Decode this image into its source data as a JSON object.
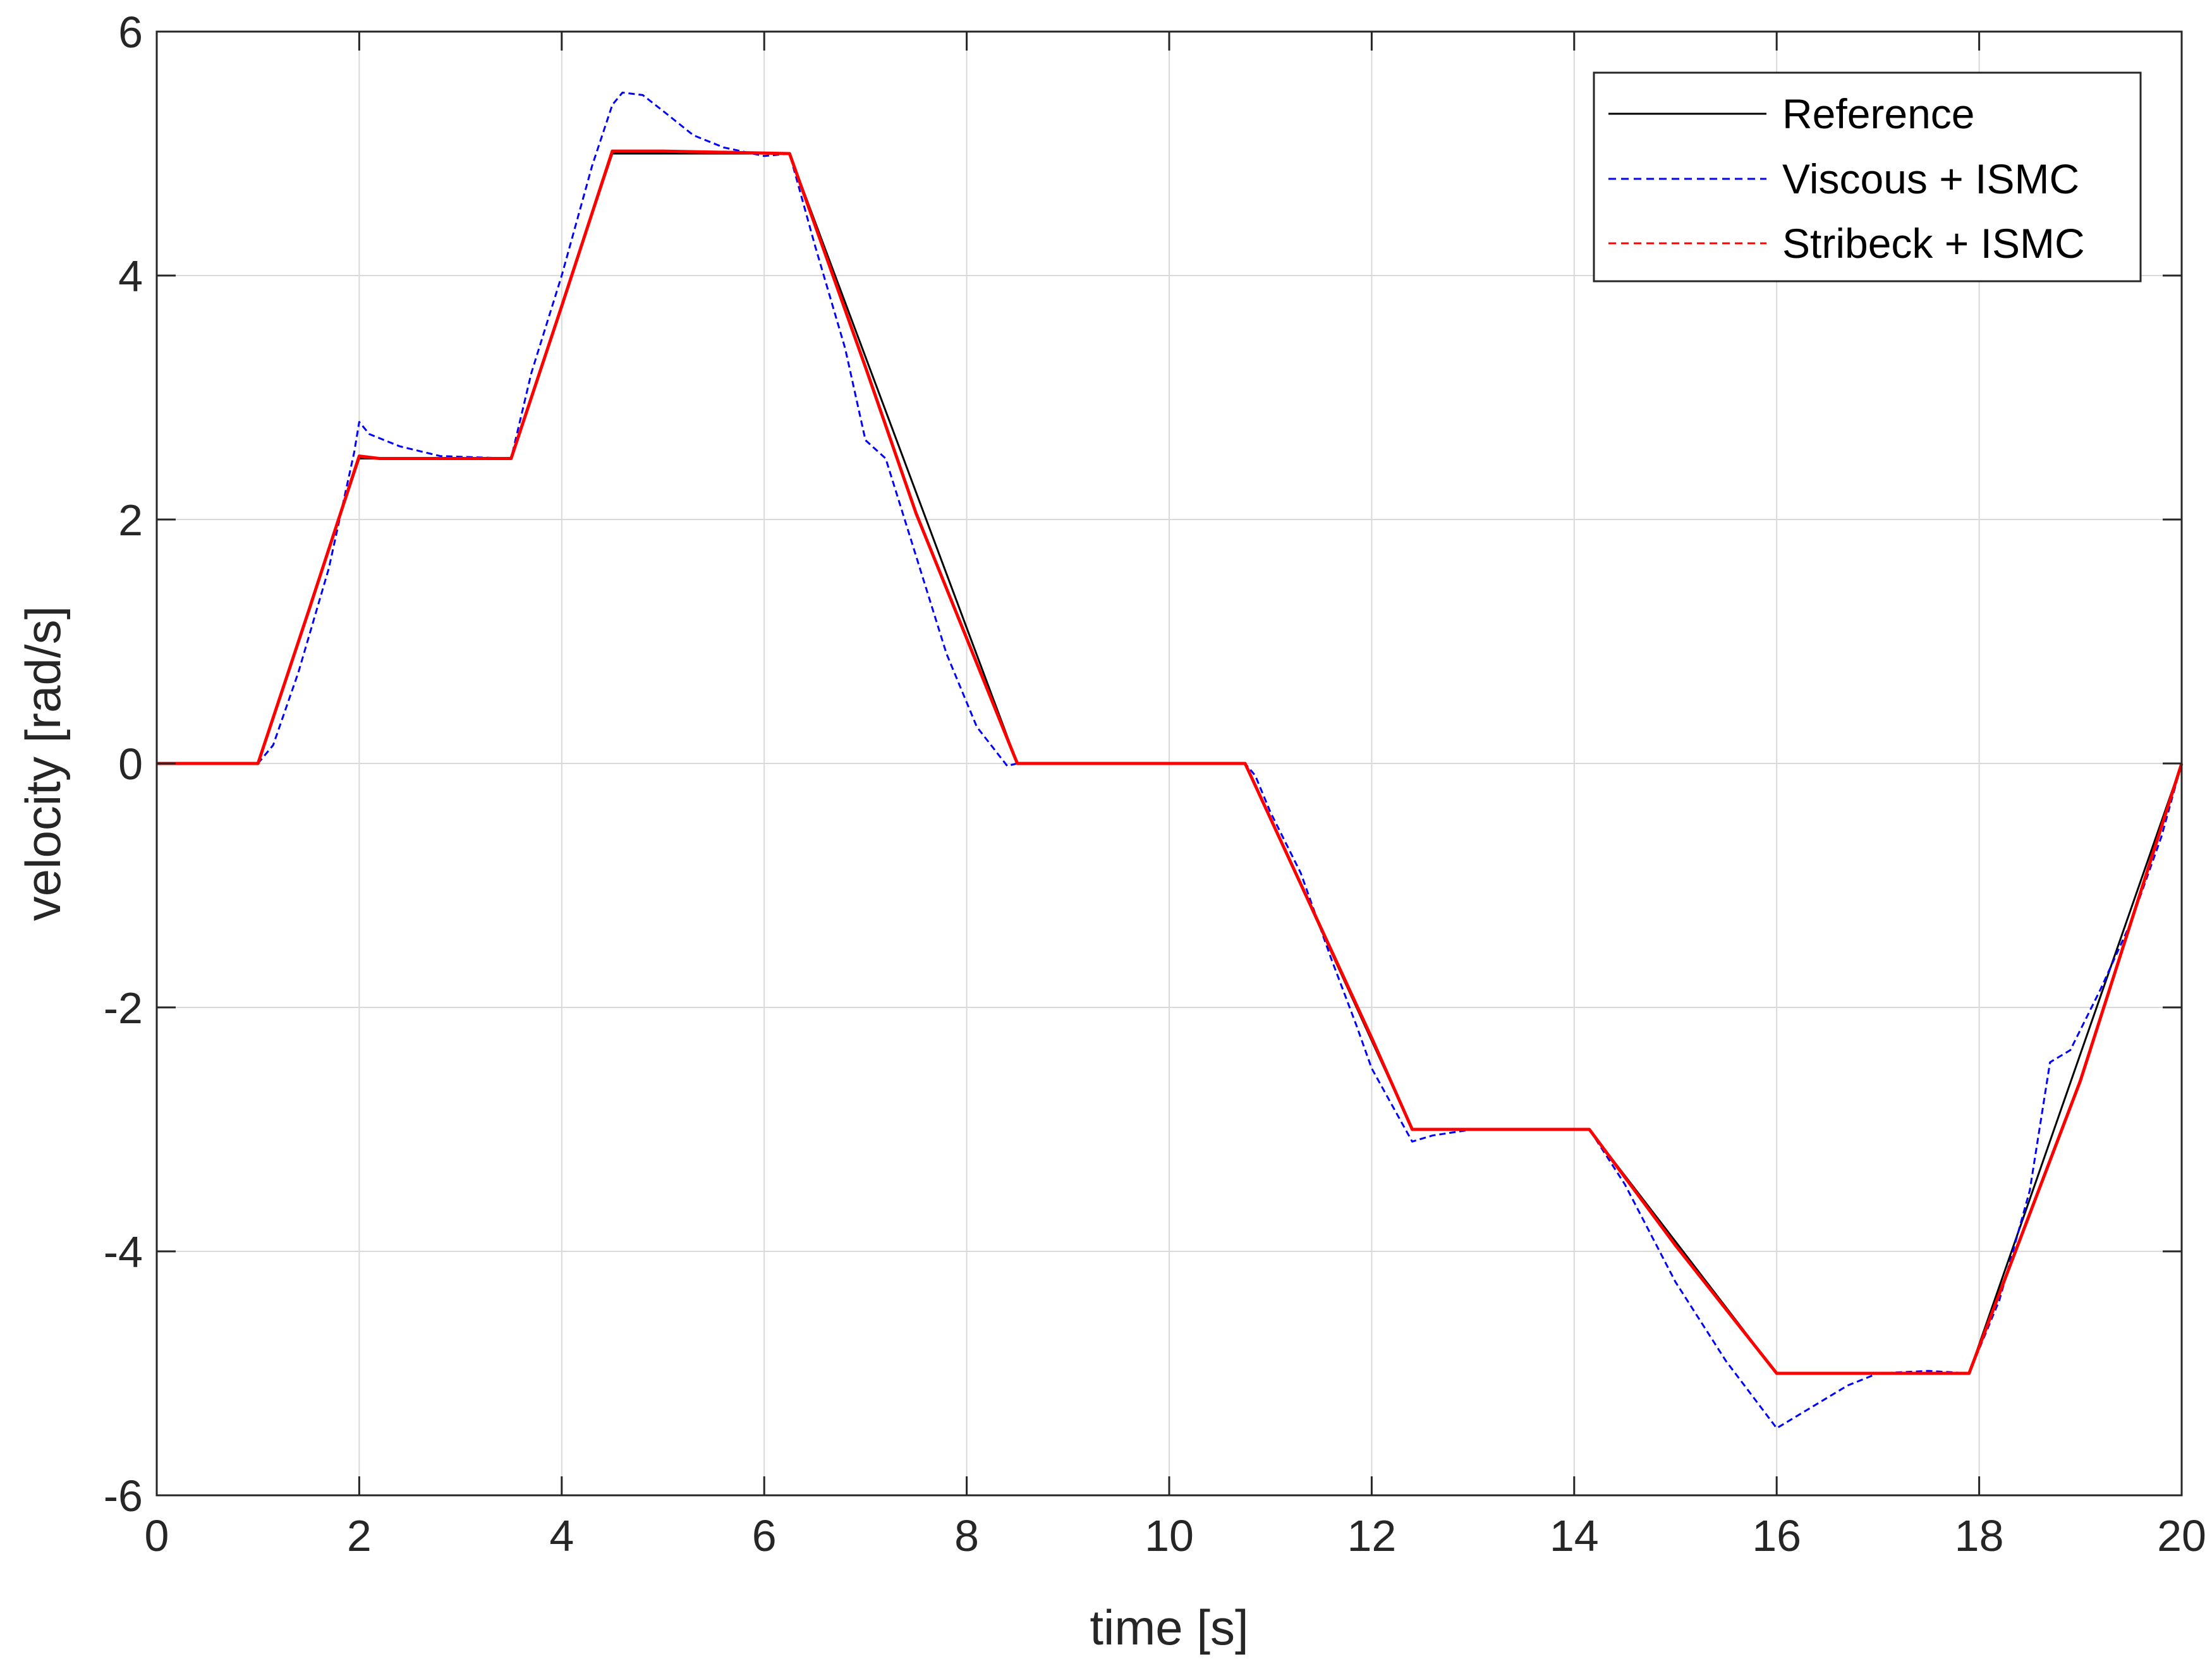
{
  "chart_data": {
    "type": "line",
    "title": "",
    "xlabel": "time [s]",
    "ylabel": "velocity [rad/s]",
    "xlim": [
      0,
      20
    ],
    "ylim": [
      -6,
      6
    ],
    "xticks": [
      "0",
      "2",
      "4",
      "6",
      "8",
      "10",
      "12",
      "14",
      "16",
      "18",
      "20"
    ],
    "yticks": [
      "-6",
      "-4",
      "-2",
      "0",
      "2",
      "4",
      "6"
    ],
    "grid": true,
    "legend_position": "top-right",
    "series": [
      {
        "name": "Reference",
        "color": "#000000",
        "style": "solid",
        "x": [
          0,
          1,
          2,
          3.5,
          4.5,
          6.25,
          8.5,
          10.75,
          12.4,
          14.15,
          16,
          17.9,
          20
        ],
        "y": [
          0,
          0,
          2.5,
          2.5,
          5,
          5,
          0,
          0,
          -3,
          -3,
          -5,
          -5,
          0
        ]
      },
      {
        "name": "Viscous + ISMC",
        "color": "#0000ff",
        "style": "dashed",
        "x": [
          0,
          1,
          1.15,
          1.4,
          1.7,
          1.95,
          2.0,
          2.1,
          2.4,
          2.8,
          3.5,
          3.7,
          4.0,
          4.3,
          4.5,
          4.6,
          4.8,
          5.0,
          5.3,
          5.6,
          6.0,
          6.25,
          6.5,
          6.8,
          7.0,
          7.2,
          7.5,
          7.8,
          8.1,
          8.4,
          8.5,
          10.75,
          10.85,
          11.0,
          11.3,
          11.6,
          11.85,
          12.0,
          12.2,
          12.4,
          12.6,
          13.0,
          13.5,
          14.15,
          14.5,
          15.0,
          15.5,
          16.0,
          16.3,
          16.7,
          17.0,
          17.5,
          17.9,
          18.2,
          18.5,
          18.7,
          18.9,
          19.2,
          19.5,
          19.8,
          20.0
        ],
        "y": [
          0,
          0,
          0.15,
          0.75,
          1.6,
          2.55,
          2.8,
          2.7,
          2.6,
          2.52,
          2.5,
          3.2,
          4.0,
          4.9,
          5.4,
          5.5,
          5.48,
          5.35,
          5.15,
          5.05,
          4.98,
          5.0,
          4.25,
          3.4,
          2.65,
          2.5,
          1.7,
          0.9,
          0.3,
          -0.02,
          0,
          0,
          -0.1,
          -0.4,
          -0.9,
          -1.6,
          -2.15,
          -2.5,
          -2.8,
          -3.1,
          -3.05,
          -3.0,
          -3.0,
          -3.0,
          -3.45,
          -4.25,
          -4.9,
          -5.45,
          -5.3,
          -5.1,
          -5.0,
          -4.98,
          -5.0,
          -4.4,
          -3.5,
          -2.45,
          -2.35,
          -1.85,
          -1.3,
          -0.6,
          0
        ]
      },
      {
        "name": "Stribeck + ISMC",
        "color": "#ff0000",
        "style": "dashed",
        "x": [
          0,
          1,
          1.5,
          2.0,
          2.2,
          3.0,
          3.5,
          4.0,
          4.5,
          5.0,
          6.25,
          7.0,
          7.5,
          8.5,
          10.75,
          11.5,
          12.0,
          12.4,
          13.0,
          14.15,
          15.0,
          16.0,
          17.0,
          17.9,
          19.0,
          20.0
        ],
        "y": [
          0,
          0,
          1.25,
          2.52,
          2.5,
          2.5,
          2.5,
          3.75,
          5.02,
          5.02,
          5.0,
          3.25,
          2.05,
          0,
          0,
          -1.35,
          -2.25,
          -3.0,
          -3.0,
          -3.0,
          -3.95,
          -5.0,
          -5.0,
          -5.0,
          -2.6,
          0
        ]
      }
    ]
  }
}
